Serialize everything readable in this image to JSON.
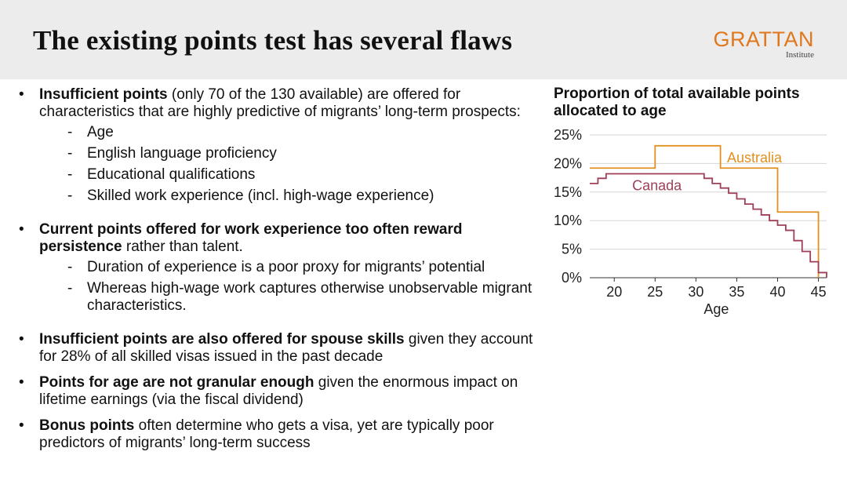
{
  "header": {
    "title": "The existing points test has several flaws",
    "logo_main": "GRATTAN",
    "logo_sub": "Institute"
  },
  "bullets": [
    {
      "lead": "Insufficient points",
      "rest": " (only 70 of the 130 available) are offered for characteristics that are highly predictive of migrants’ long-term prospects:",
      "subitems": [
        "Age",
        "English language proficiency",
        "Educational qualifications",
        "Skilled work experience (incl. high-wage experience)"
      ]
    },
    {
      "lead": "Current points offered for work experience too often reward persistence",
      "rest": " rather than talent.",
      "subitems": [
        "Duration of experience is a poor proxy for migrants’ potential",
        "Whereas high-wage work captures otherwise unobservable migrant characteristics."
      ]
    },
    {
      "lead": "Insufficient points are also offered for spouse skills",
      "rest": " given they account for 28% of all skilled visas issued in the past decade",
      "subitems": []
    },
    {
      "lead": "Points for age are not granular enough",
      "rest": " given the enormous impact on lifetime earnings (via the fiscal dividend)",
      "subitems": []
    },
    {
      "lead": "Bonus points",
      "rest": " often determine who gets a visa, yet are typically poor predictors of migrants’ long-term success",
      "subitems": []
    }
  ],
  "bullet_symbol": "•",
  "dash_symbol": "-",
  "chart_data": {
    "type": "line",
    "step": true,
    "title": "Proportion of total available points allocated to age",
    "xlabel": "Age",
    "ylabel": "",
    "xlim": [
      17,
      46
    ],
    "ylim": [
      0,
      25
    ],
    "xticks": [
      20,
      25,
      30,
      35,
      40,
      45
    ],
    "yticks": [
      0,
      5,
      10,
      15,
      20,
      25
    ],
    "ytick_labels": [
      "0%",
      "5%",
      "10%",
      "15%",
      "20%",
      "25%"
    ],
    "grid": "horizontal",
    "legend": "inline labels",
    "series": [
      {
        "name": "Australia",
        "color": "#e0911f",
        "x": [
          17,
          25,
          33,
          40,
          45,
          45
        ],
        "y": [
          19.2,
          23.1,
          19.2,
          11.5,
          0,
          0
        ]
      },
      {
        "name": "Canada",
        "color": "#9e3f57",
        "x": [
          17,
          18,
          19,
          30,
          31,
          32,
          33,
          34,
          35,
          36,
          37,
          38,
          39,
          40,
          41,
          42,
          43,
          44,
          45,
          46
        ],
        "y": [
          16.5,
          17.4,
          18.2,
          18.2,
          17.4,
          16.5,
          15.7,
          14.8,
          13.8,
          12.9,
          12.0,
          11.0,
          10.0,
          9.2,
          8.3,
          6.5,
          4.6,
          2.8,
          0.9,
          0
        ]
      }
    ]
  }
}
